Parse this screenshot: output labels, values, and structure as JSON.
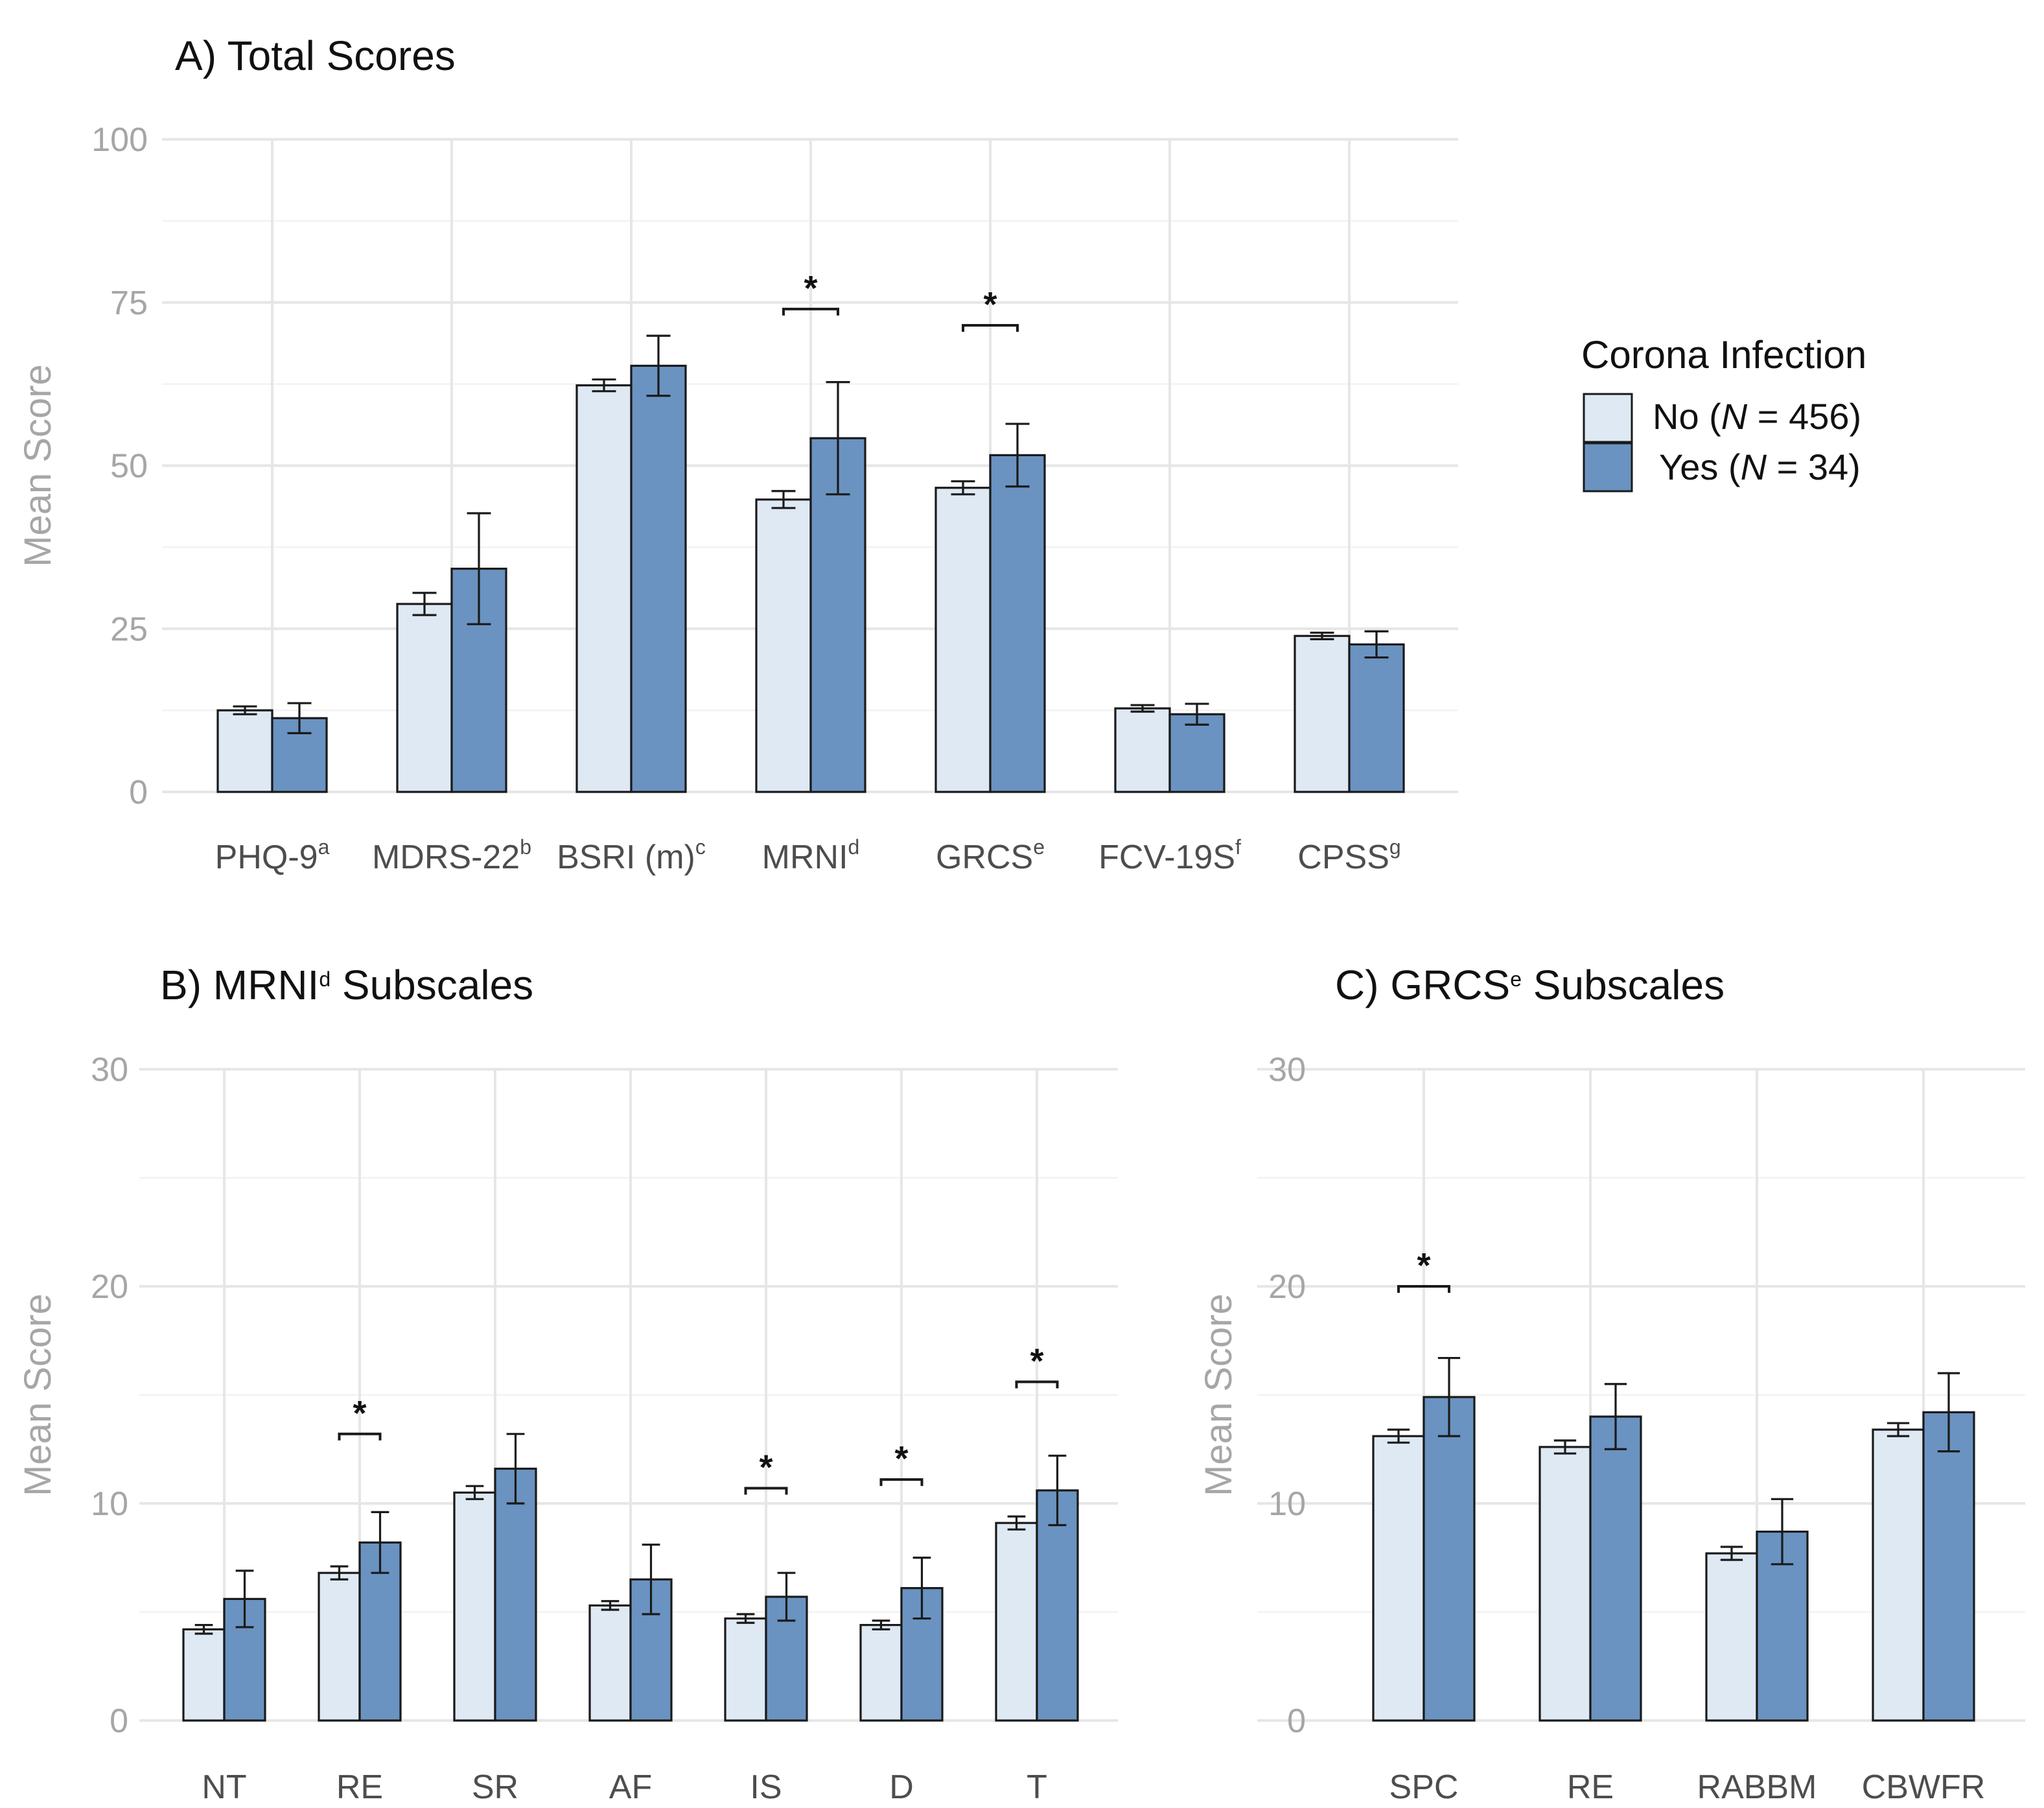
{
  "colors": {
    "no": "#dfe9f4",
    "yes": "#6a93c1",
    "axis_text": "#a6a6a6",
    "tick_text": "#4d4d4d"
  },
  "legend": {
    "title": "Corona Infection",
    "items": [
      {
        "key": "no",
        "prefix": "No (",
        "n_symbol": "N",
        "suffix": " = 456)"
      },
      {
        "key": "yes",
        "prefix": "Yes (",
        "n_symbol": "N",
        "suffix": " = 34)"
      }
    ]
  },
  "chart_data": [
    {
      "id": "A",
      "type": "bar",
      "title": "A) Total Scores",
      "title_sup": "",
      "title_rest": "",
      "ylabel": "Mean Score",
      "ylim": [
        0,
        100
      ],
      "yticks": [
        0,
        25,
        50,
        75,
        100
      ],
      "grid": true,
      "categories": [
        {
          "label": "PHQ-9",
          "sup": "a"
        },
        {
          "label": "MDRS-22",
          "sup": "b"
        },
        {
          "label": "BSRI (m)",
          "sup": "c"
        },
        {
          "label": "MRNI",
          "sup": "d"
        },
        {
          "label": "GRCS",
          "sup": "e"
        },
        {
          "label": "FCV-19S",
          "sup": "f"
        },
        {
          "label": "CPSS",
          "sup": "g"
        }
      ],
      "series": [
        {
          "name": "No",
          "values": [
            12.5,
            28.8,
            62.3,
            44.8,
            46.6,
            12.8,
            23.9
          ],
          "err": [
            0.6,
            1.7,
            0.9,
            1.3,
            1.0,
            0.5,
            0.5
          ]
        },
        {
          "name": "Yes",
          "values": [
            11.3,
            34.2,
            65.3,
            54.2,
            51.6,
            11.9,
            22.6
          ],
          "err": [
            2.3,
            8.5,
            4.6,
            8.6,
            4.8,
            1.6,
            2.0
          ]
        }
      ],
      "significant": [
        {
          "index": 3,
          "bracket_y": 74.0,
          "label": "*"
        },
        {
          "index": 4,
          "bracket_y": 71.5,
          "label": "*"
        }
      ]
    },
    {
      "id": "B",
      "type": "bar",
      "title": "B) MRNI",
      "title_sup": "d",
      "title_rest": " Subscales",
      "ylabel": "Mean Score",
      "ylim": [
        0,
        30
      ],
      "yticks": [
        0,
        10,
        20,
        30
      ],
      "grid": true,
      "categories": [
        {
          "label": "NT",
          "sup": ""
        },
        {
          "label": "RE",
          "sup": ""
        },
        {
          "label": "SR",
          "sup": ""
        },
        {
          "label": "AF",
          "sup": ""
        },
        {
          "label": "IS",
          "sup": ""
        },
        {
          "label": "D",
          "sup": ""
        },
        {
          "label": "T",
          "sup": ""
        }
      ],
      "series": [
        {
          "name": "No",
          "values": [
            4.2,
            6.8,
            10.5,
            5.3,
            4.7,
            4.4,
            9.1
          ],
          "err": [
            0.2,
            0.3,
            0.3,
            0.2,
            0.2,
            0.2,
            0.3
          ]
        },
        {
          "name": "Yes",
          "values": [
            5.6,
            8.2,
            11.6,
            6.5,
            5.7,
            6.1,
            10.6
          ],
          "err": [
            1.3,
            1.4,
            1.6,
            1.6,
            1.1,
            1.4,
            1.6
          ]
        }
      ],
      "significant": [
        {
          "index": 1,
          "bracket_y": 13.2,
          "label": "*"
        },
        {
          "index": 4,
          "bracket_y": 10.7,
          "label": "*"
        },
        {
          "index": 5,
          "bracket_y": 11.1,
          "label": "*"
        },
        {
          "index": 6,
          "bracket_y": 15.6,
          "label": "*"
        }
      ]
    },
    {
      "id": "C",
      "type": "bar",
      "title": "C) GRCS",
      "title_sup": "e",
      "title_rest": " Subscales",
      "ylabel": "Mean Score",
      "ylim": [
        0,
        30
      ],
      "yticks": [
        0,
        10,
        20,
        30
      ],
      "grid": true,
      "categories": [
        {
          "label": "SPC",
          "sup": ""
        },
        {
          "label": "RE",
          "sup": ""
        },
        {
          "label": "RABBM",
          "sup": ""
        },
        {
          "label": "CBWFR",
          "sup": ""
        }
      ],
      "series": [
        {
          "name": "No",
          "values": [
            13.1,
            12.6,
            7.7,
            13.4
          ],
          "err": [
            0.3,
            0.3,
            0.3,
            0.3
          ]
        },
        {
          "name": "Yes",
          "values": [
            14.9,
            14.0,
            8.7,
            14.2
          ],
          "err": [
            1.8,
            1.5,
            1.5,
            1.8
          ]
        }
      ],
      "significant": [
        {
          "index": 0,
          "bracket_y": 20.0,
          "label": "*"
        }
      ]
    }
  ]
}
